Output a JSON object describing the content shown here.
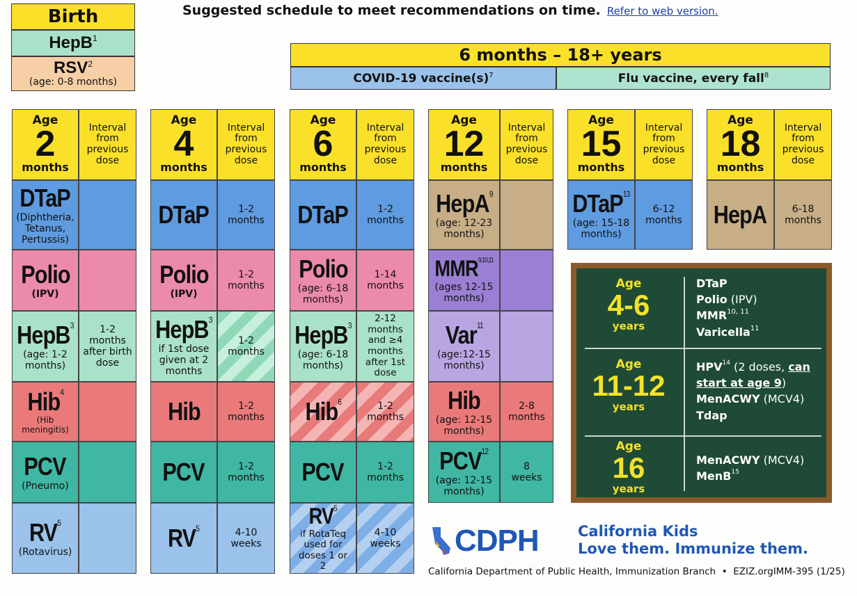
{
  "header": {
    "title": "Suggested schedule to meet recommendations on time.",
    "link": "Refer to web version."
  },
  "birth": {
    "label": "Birth",
    "hepb": "HepB",
    "hepb_sup": "1",
    "rsv": "RSV",
    "rsv_sup": "2",
    "rsv_sub": "(age: 0-8 months)"
  },
  "range": {
    "label": "6 months – 18+ years",
    "covid": "COVID-19 vaccine(s)",
    "covid_sup": "7",
    "flu": "Flu vaccine, every fall",
    "flu_sup": "8"
  },
  "common": {
    "age_word": "Age",
    "months_word": "months",
    "interval_head": "Interval from previous dose"
  },
  "columns": [
    {
      "age": "2"
    },
    {
      "age": "4"
    },
    {
      "age": "6"
    },
    {
      "age": "12"
    },
    {
      "age": "15"
    },
    {
      "age": "18"
    }
  ],
  "col2": {
    "dtap": "DTaP",
    "dtap_sub": "(Diphtheria, Tetanus, Pertussis)",
    "polio": "Polio",
    "polio_sub": "(IPV)",
    "hepb": "HepB",
    "hepb_sup": "3",
    "hepb_sub": "(age: 1-2 months)",
    "hepb_int": "1-2 months after birth dose",
    "hib": "Hib",
    "hib_sup": "4",
    "hib_sub": "(Hib meningitis)",
    "pcv": "PCV",
    "pcv_sub": "(Pneumo)",
    "rv": "RV",
    "rv_sup": "5",
    "rv_sub": "(Rotavirus)"
  },
  "col4": {
    "dtap": "DTaP",
    "dtap_int": "1-2 months",
    "polio": "Polio",
    "polio_sub": "(IPV)",
    "polio_int": "1-2 months",
    "hepb": "HepB",
    "hepb_sup": "3",
    "hepb_sub": "if 1st dose given at 2 months",
    "hepb_int": "1-2 months",
    "hib": "Hib",
    "hib_int": "1-2 months",
    "pcv": "PCV",
    "pcv_int": "1-2 months",
    "rv": "RV",
    "rv_sup": "5",
    "rv_int": "4-10 weeks"
  },
  "col6": {
    "dtap": "DTaP",
    "dtap_int": "1-2 months",
    "polio": "Polio",
    "polio_sub": "(age: 6-18 months)",
    "polio_int": "1-14 months",
    "hepb": "HepB",
    "hepb_sup": "3",
    "hepb_sub": "(age: 6-18 months)",
    "hepb_int": "2-12 months and ≥4 months after 1st dose",
    "hib": "Hib",
    "hib_sup": "6",
    "hib_int": "1-2 months",
    "pcv": "PCV",
    "pcv_int": "1-2 months",
    "rv": "RV",
    "rv_sup": "5",
    "rv_sub": "if RotaTeq used for doses 1 or 2",
    "rv_int": "4-10 weeks"
  },
  "col12": {
    "hepa": "HepA",
    "hepa_sup": "9",
    "hepa_sub": "(age: 12-23 months)",
    "mmr": "MMR",
    "mmr_sup": "9,10,11",
    "mmr_sub": "(ages 12-15 months)",
    "var": "Var",
    "var_sup": "11",
    "var_sub": "(age:12-15 months)",
    "hib": "Hib",
    "hib_sub": "(age: 12-15 months)",
    "hib_int": "2-8 months",
    "pcv": "PCV",
    "pcv_sup": "12",
    "pcv_sub": "(age: 12-15 months)",
    "pcv_int": "8 weeks"
  },
  "col15": {
    "dtap": "DTaP",
    "dtap_sup": "13",
    "dtap_sub": "(age: 15-18 months)",
    "dtap_int": "6-12 months"
  },
  "col18": {
    "hepa": "HepA",
    "hepa_int": "6-18 months"
  },
  "chalkboard": {
    "rows": [
      {
        "age_word": "Age",
        "age": "4-6",
        "unit": "years"
      },
      {
        "age_word": "Age",
        "age": "11-12",
        "unit": "years"
      },
      {
        "age_word": "Age",
        "age": "16",
        "unit": "years"
      }
    ],
    "r1": {
      "a": "DTaP",
      "b": "Polio",
      "b_tail": " (IPV)",
      "c": "MMR",
      "c_sup": "10, 11",
      "d": "Varicella",
      "d_sup": "11"
    },
    "r2": {
      "a": "HPV",
      "a_sup": "14",
      "a_tail": " (2 doses, ",
      "a_can": "can start at age 9",
      "a_end": ")",
      "b": "MenACWY",
      "b_tail": " (MCV4)",
      "c": "Tdap"
    },
    "r3": {
      "a": "MenACWY",
      "a_tail": " (MCV4)",
      "b": "MenB",
      "b_sup": "15"
    }
  },
  "footer": {
    "logo": "CDPH",
    "tag1": "California Kids",
    "tag2": "Love them. Immunize them.",
    "line": "California Department of Public Health, Immunization Branch  •  EZIZ.org",
    "code": "IMM-395 (1/25)"
  },
  "colors": {
    "yellow": "#fbe02a",
    "blue": "#5f9be0",
    "pink": "#ec8aaa",
    "red": "#ea7a7a",
    "teal": "#40b7a3",
    "chalk": "#1f4a35",
    "brand": "#1f57b5"
  }
}
